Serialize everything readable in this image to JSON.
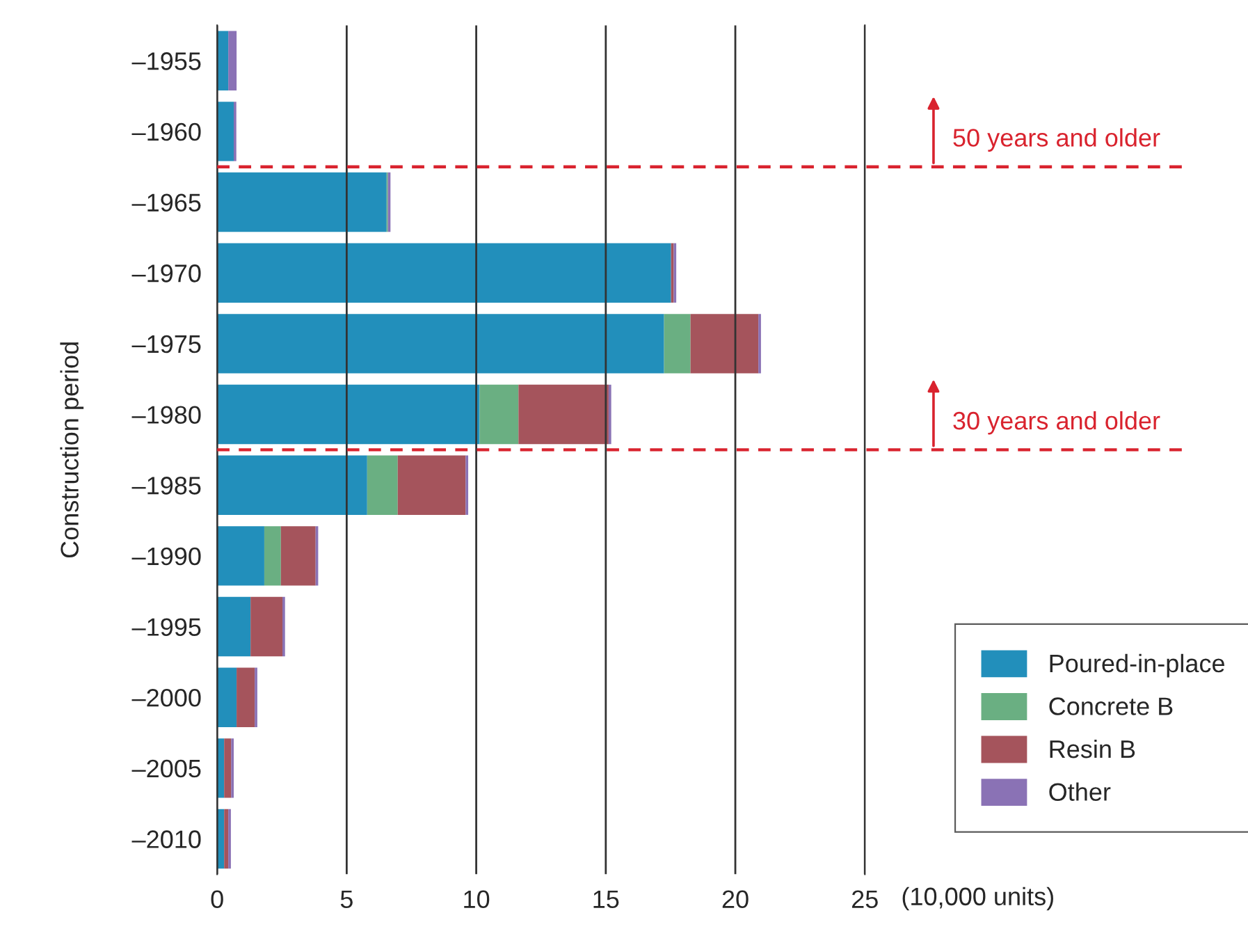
{
  "chart_data": {
    "type": "bar",
    "orientation": "horizontal",
    "stacked": true,
    "categories": [
      "–1955",
      "–1960",
      "–1965",
      "–1970",
      "–1975",
      "–1980",
      "–1985",
      "–1990",
      "–1995",
      "–2000",
      "–2005",
      "–2010"
    ],
    "series": [
      {
        "name": "Poured-in-place",
        "color": "#228fbb",
        "values": [
          0.43,
          0.64,
          6.54,
          17.52,
          17.25,
          10.13,
          5.79,
          1.82,
          1.29,
          0.75,
          0.27,
          0.27
        ]
      },
      {
        "name": "Concrete B",
        "color": "#6aaf82",
        "values": [
          0,
          0,
          0.05,
          0,
          1.02,
          1.5,
          1.18,
          0.64,
          0,
          0,
          0,
          0
        ]
      },
      {
        "name": "Resin B",
        "color": "#a5545c",
        "values": [
          0,
          0,
          0,
          0.1,
          2.62,
          3.48,
          2.62,
          1.34,
          1.23,
          0.7,
          0.27,
          0.16
        ]
      },
      {
        "name": "Other",
        "color": "#8a72b5",
        "values": [
          0.32,
          0.1,
          0.1,
          0.1,
          0.1,
          0.1,
          0.1,
          0.1,
          0.1,
          0.1,
          0.1,
          0.1
        ]
      }
    ],
    "xlim": [
      0,
      25
    ],
    "xticks": [
      0,
      5,
      10,
      15,
      20,
      25
    ],
    "xlabel": "(10,000 units)",
    "ylabel": "Construction period",
    "grid": "x",
    "legend": "right",
    "ref_lines": [
      {
        "axis": "y",
        "value": "–1960",
        "label": "50 years and older",
        "color": "#d9232e",
        "line_style": "dashed"
      },
      {
        "axis": "y",
        "value": "–1980",
        "label": "30 years and older",
        "color": "#d9232e",
        "line_style": "dashed"
      }
    ]
  }
}
